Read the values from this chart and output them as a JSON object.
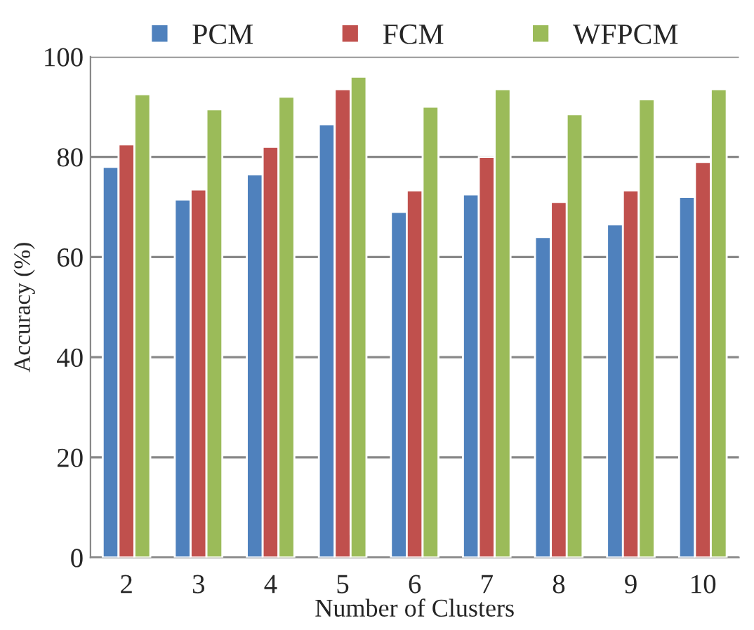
{
  "chart_data": {
    "type": "bar",
    "xlabel": "Number of Clusters",
    "ylabel": "Accuracy (%)",
    "categories": [
      "2",
      "3",
      "4",
      "5",
      "6",
      "7",
      "8",
      "9",
      "10"
    ],
    "series": [
      {
        "name": "PCM",
        "color": "#4f81bd",
        "values": [
          78,
          71.5,
          76.5,
          86.5,
          69,
          72.5,
          64,
          66.5,
          72
        ]
      },
      {
        "name": "FCM",
        "color": "#c0504d",
        "values": [
          82.5,
          73.5,
          82,
          93.5,
          73.3,
          80,
          71,
          73.3,
          79
        ]
      },
      {
        "name": "WFPCM",
        "color": "#9bbb59",
        "values": [
          92.5,
          89.5,
          92,
          96,
          90,
          93.5,
          88.5,
          91.5,
          93.5
        ]
      }
    ],
    "ylim": [
      0,
      100
    ],
    "yticks": [
      0,
      20,
      40,
      60,
      80,
      100
    ],
    "grid": "y",
    "legend": "top"
  }
}
